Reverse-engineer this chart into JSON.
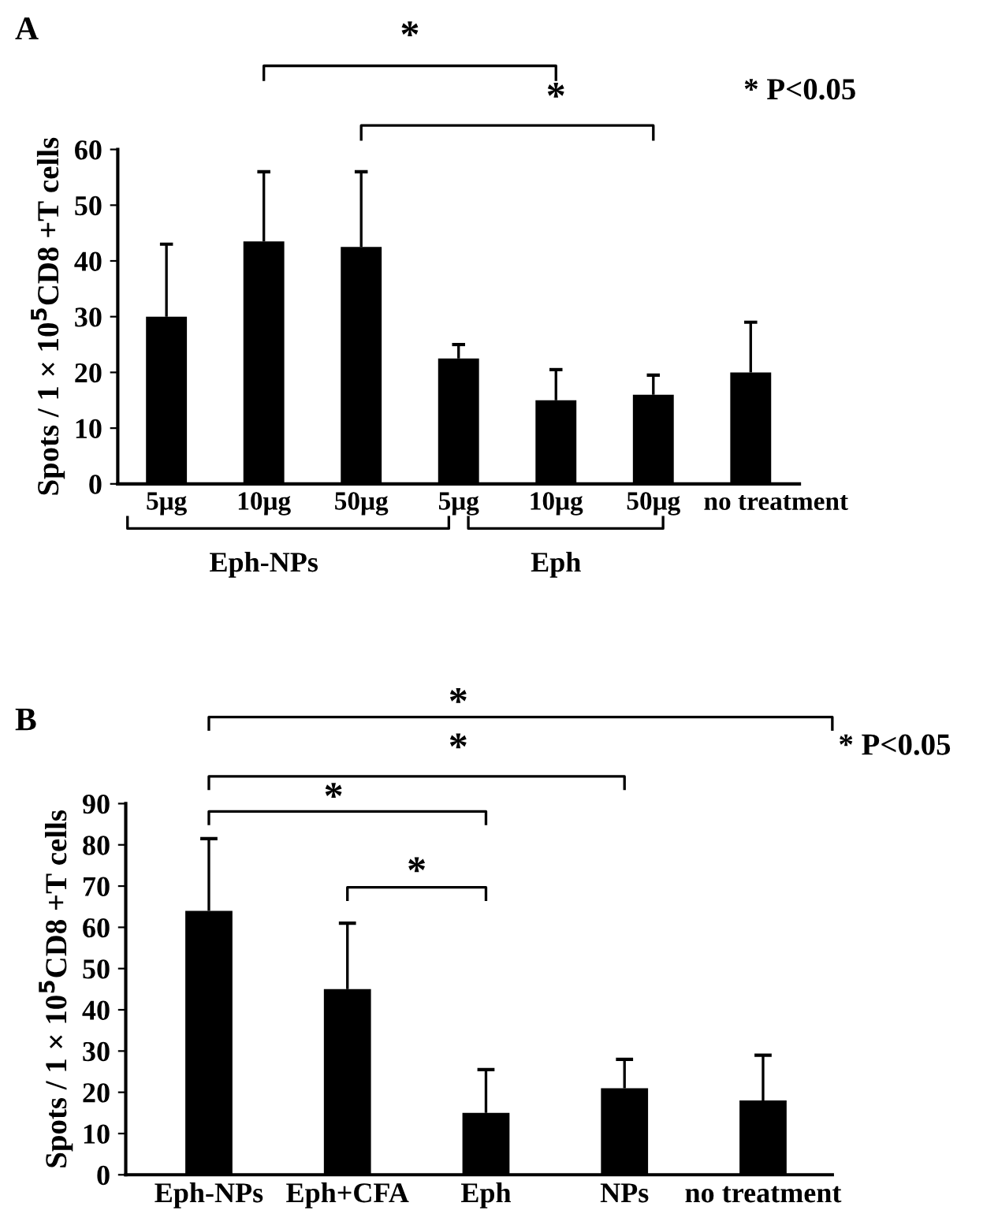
{
  "chart_data": [
    {
      "type": "bar",
      "title": "A",
      "ylabel": "Spots / 1 × 10$^{5}$CD8 +T cells",
      "categories": [
        "5μg",
        "10μg",
        "50μg",
        "5μg",
        "10μg",
        "50μg",
        "no treatment"
      ],
      "values": [
        30,
        43.5,
        42.5,
        22.5,
        15,
        16,
        20
      ],
      "color": "#000000",
      "errors": [
        [
          30,
          43
        ],
        [
          43.5,
          56
        ],
        [
          42.5,
          56
        ],
        [
          22.5,
          25
        ],
        [
          15,
          20.5
        ],
        [
          16,
          19.5
        ],
        [
          20,
          29
        ]
      ],
      "ylim": [
        0,
        60
      ],
      "yticks": [
        0,
        10,
        20,
        30,
        40,
        50,
        60
      ],
      "grid": false,
      "legend": false,
      "annotations": [
        "*",
        "*",
        "* P<0.05",
        "Eph-NPs",
        "Eph"
      ]
    },
    {
      "type": "bar",
      "title": "B",
      "ylabel": "Spots / 1 × 10$^{5}$CD8 +T cells",
      "categories": [
        "Eph-NPs",
        "Eph+CFA",
        "Eph",
        "NPs",
        "no treatment"
      ],
      "values": [
        64,
        45,
        15,
        21,
        18
      ],
      "color": "#000000",
      "errors": [
        [
          64,
          81.5
        ],
        [
          45,
          61
        ],
        [
          15,
          25.5
        ],
        [
          21,
          28
        ],
        [
          18,
          29
        ]
      ],
      "ylim": [
        0,
        90
      ],
      "yticks": [
        0,
        10,
        20,
        30,
        40,
        50,
        60,
        70,
        80,
        90
      ],
      "grid": false,
      "legend": false,
      "annotations": [
        "*",
        "*",
        "*",
        "*",
        "* P<0.05"
      ]
    }
  ]
}
